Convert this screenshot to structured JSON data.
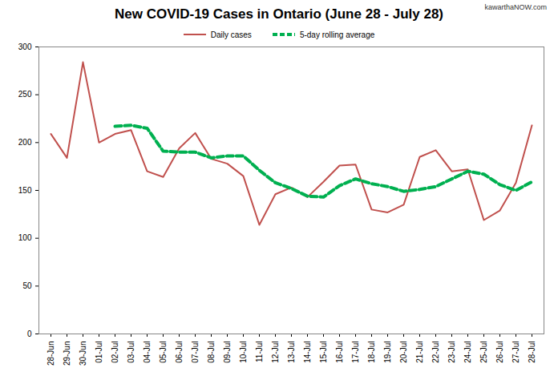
{
  "chart_data": {
    "type": "line",
    "title": "New COVID-19 Cases in Ontario (June 28 - July 28)",
    "annotations": [
      "kawarthaNOW.com"
    ],
    "categories": [
      "28-Jun",
      "29-Jun",
      "30-Jun",
      "01-Jul",
      "02-Jul",
      "03-Jul",
      "04-Jul",
      "05-Jul",
      "06-Jul",
      "07-Jul",
      "08-Jul",
      "09-Jul",
      "10-Jul",
      "11-Jul",
      "12-Jul",
      "13-Jul",
      "14-Jul",
      "15-Jul",
      "16-Jul",
      "17-Jul",
      "18-Jul",
      "19-Jul",
      "20-Jul",
      "21-Jul",
      "22-Jul",
      "23-Jul",
      "24-Jul",
      "25-Jul",
      "26-Jul",
      "27-Jul",
      "28-Jul"
    ],
    "series": [
      {
        "name": "Daily cases",
        "color": "#c0504d",
        "line_style": "solid",
        "values": [
          209,
          184,
          284,
          200,
          209,
          213,
          170,
          164,
          194,
          210,
          183,
          178,
          165,
          114,
          146,
          153,
          143,
          159,
          176,
          177,
          130,
          127,
          135,
          185,
          192,
          170,
          172,
          119,
          129,
          158,
          218
        ]
      },
      {
        "name": "5-day rolling average",
        "color": "#00b050",
        "line_style": "dashed",
        "values": [
          null,
          null,
          null,
          null,
          217,
          218,
          215,
          191,
          190,
          190,
          184,
          186,
          186,
          171,
          158,
          152,
          144,
          143,
          155,
          162,
          157,
          154,
          149,
          151,
          154,
          162,
          170,
          167,
          156,
          150,
          159
        ]
      }
    ],
    "ylim": [
      0,
      300
    ],
    "yticks": [
      0,
      50,
      100,
      150,
      200,
      250,
      300
    ],
    "grid": false,
    "legend": "top"
  }
}
